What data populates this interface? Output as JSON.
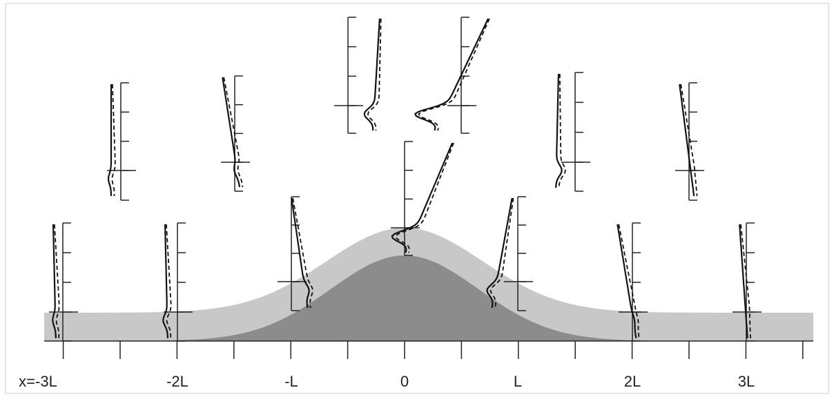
{
  "x_axis": {
    "labels": [
      "x=-3L",
      "-2L",
      "-L",
      "0",
      "L",
      "2L",
      "3L"
    ]
  }
}
